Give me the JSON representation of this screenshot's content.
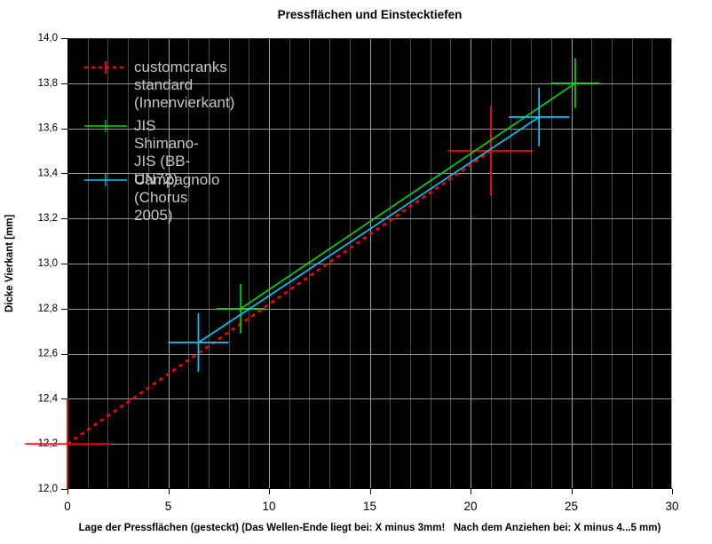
{
  "chart_data": {
    "type": "line",
    "title": "Pressflächen und Einstecktiefen",
    "xlabel": "Lage der Pressflächen (gesteckt) (Das Wellen-Ende liegt bei: X minus 3mm!   Nach dem Anziehen bei: X minus 4...5 mm)",
    "ylabel": "Dicke Vierkant [mm]",
    "xlim": [
      0,
      30
    ],
    "ylim": [
      12.0,
      14.0
    ],
    "x_minor_step": 1,
    "x_ticks": [
      {
        "v": 0,
        "label": "0"
      },
      {
        "v": 5,
        "label": "5"
      },
      {
        "v": 10,
        "label": "10"
      },
      {
        "v": 15,
        "label": "15"
      },
      {
        "v": 20,
        "label": "20"
      },
      {
        "v": 25,
        "label": "25"
      },
      {
        "v": 30,
        "label": "30"
      }
    ],
    "y_ticks": [
      {
        "v": 12.0,
        "label": "12,0"
      },
      {
        "v": 12.2,
        "label": "12,2"
      },
      {
        "v": 12.4,
        "label": "12,4"
      },
      {
        "v": 12.6,
        "label": "12,6"
      },
      {
        "v": 12.8,
        "label": "12,8"
      },
      {
        "v": 13.0,
        "label": "13,0"
      },
      {
        "v": 13.2,
        "label": "13,2"
      },
      {
        "v": 13.4,
        "label": "13,4"
      },
      {
        "v": 13.6,
        "label": "13,6"
      },
      {
        "v": 13.8,
        "label": "13,8"
      },
      {
        "v": 14.0,
        "label": "14,0"
      }
    ],
    "grid": {
      "plot_bg": "#000000",
      "minor_v_color": "#4a4a4a",
      "major_v_color": "#a0a0a0",
      "h_color": "#939393",
      "border_top_color": "#2e2e2e",
      "border_right_color": "#a0a0a0",
      "axis_color": "#000000"
    },
    "legend_position": "upper-left",
    "legend_text_color": "#c6c6c6",
    "series": [
      {
        "name": "customcranks standard (Innenvierkant)",
        "color": "#ff0000",
        "line_style": "dashed",
        "marker": "plus",
        "x_err": 2.1,
        "y_err": 0.2,
        "points": [
          {
            "x": 0,
            "y": 12.2
          },
          {
            "x": 21,
            "y": 13.5
          }
        ]
      },
      {
        "name": "JIS Shimano-JIS (BB-UN72)",
        "color": "#00dd00",
        "line_style": "solid",
        "marker": "plus",
        "x_err": 1.2,
        "y_err": 0.11,
        "points": [
          {
            "x": 8.6,
            "y": 12.8
          },
          {
            "x": 25.2,
            "y": 13.8
          }
        ]
      },
      {
        "name": "Campagnolo (Chorus 2005)",
        "color": "#00ccff",
        "line_style": "solid",
        "marker": "plus",
        "x_err": 1.5,
        "y_err": 0.13,
        "points": [
          {
            "x": 6.5,
            "y": 12.65
          },
          {
            "x": 23.4,
            "y": 13.65
          }
        ]
      }
    ]
  }
}
